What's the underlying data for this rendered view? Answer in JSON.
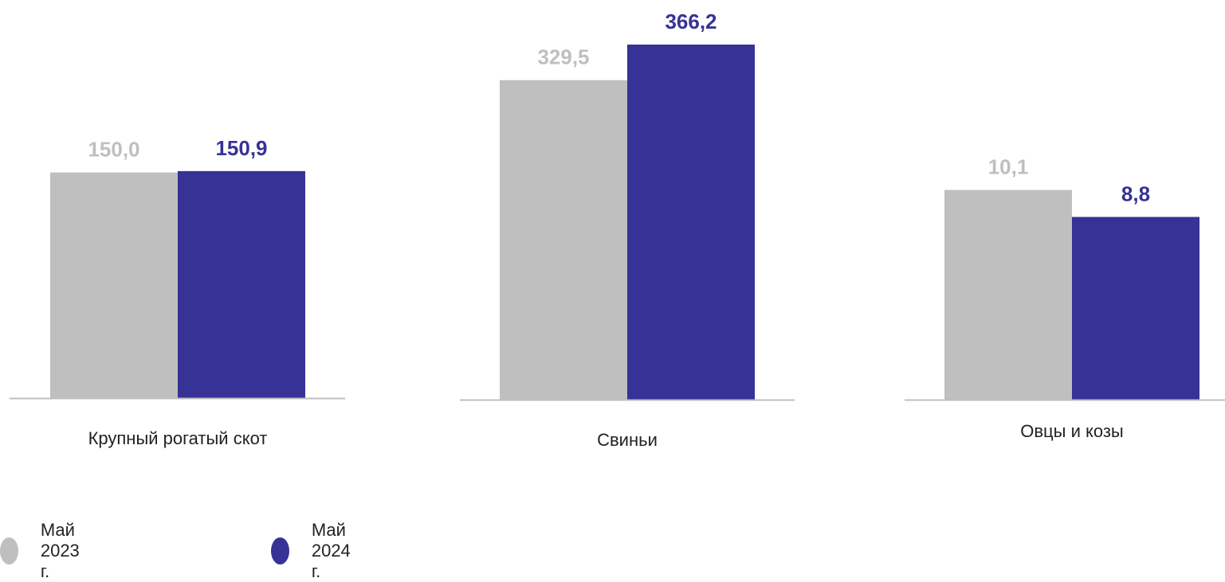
{
  "chart_data": {
    "type": "bar",
    "panels": [
      {
        "category": "Крупный рогатый скот",
        "ylim": [
          0,
          235
        ],
        "values": [
          {
            "series": 0,
            "value": 150.0,
            "label": "150,0"
          },
          {
            "series": 1,
            "value": 150.9,
            "label": "150,9"
          }
        ]
      },
      {
        "category": "Свиньи",
        "ylim": [
          0,
          366.2
        ],
        "values": [
          {
            "series": 0,
            "value": 329.5,
            "label": "329,5"
          },
          {
            "series": 1,
            "value": 366.2,
            "label": "366,2"
          }
        ]
      },
      {
        "category": "Овцы и козы",
        "ylim": [
          0,
          17.1
        ],
        "values": [
          {
            "series": 0,
            "value": 10.1,
            "label": "10,1"
          },
          {
            "series": 1,
            "value": 8.8,
            "label": "8,8"
          }
        ]
      }
    ],
    "series": [
      {
        "name": "Май 2023 г.",
        "color": "#bfbfbf",
        "label_color": "#bfbfbf"
      },
      {
        "name": "Май 2024 г.",
        "color": "#373296",
        "label_color": "#373296"
      }
    ],
    "axis_color": "#bfbfbf",
    "legend_position": "bottom-left"
  }
}
